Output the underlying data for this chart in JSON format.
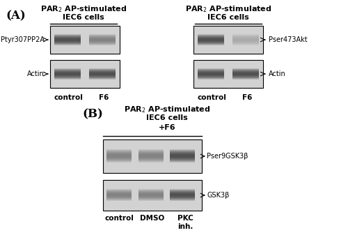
{
  "bg_color": "#ffffff",
  "fig_width": 5.0,
  "fig_height": 3.47,
  "dpi": 100,
  "panel_A_label": "(A)",
  "panel_B_label": "(B)",
  "panel_A_left_title_line1": "PAR$_2$ AP-stimulated",
  "panel_A_left_title_line2": "IEC6 cells",
  "panel_A_right_title_line1": "PAR$_2$ AP-stimulated",
  "panel_A_right_title_line2": "IEC6 cells",
  "panel_B_title_line1": "PAR$_2$ AP-stimulated",
  "panel_B_title_line2": "IEC6 cells",
  "panel_B_title_line3": "+F6",
  "band_bg": 210,
  "band_dark": 80,
  "band_mid": 130,
  "band_light": 170,
  "label_fontsize": 7.5,
  "title_fontsize": 8.0,
  "panel_label_fontsize": 12
}
